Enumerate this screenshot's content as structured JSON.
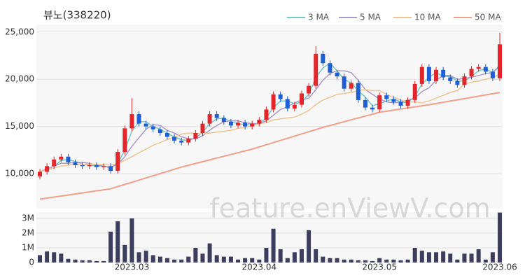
{
  "chart_data": {
    "type": "candlestick",
    "title": "뷰노(338220)",
    "watermark": "feature.enViewV.com",
    "categories": [
      null,
      null,
      null,
      null,
      null,
      null,
      null,
      null,
      null,
      null,
      null,
      null,
      null,
      "2023.03",
      null,
      null,
      null,
      null,
      null,
      null,
      null,
      null,
      null,
      null,
      null,
      null,
      null,
      null,
      null,
      null,
      null,
      "2023.04",
      null,
      null,
      null,
      null,
      null,
      null,
      null,
      null,
      null,
      null,
      null,
      null,
      null,
      null,
      null,
      null,
      "2023.05",
      null,
      null,
      null,
      null,
      null,
      null,
      null,
      null,
      null,
      null,
      null,
      null,
      null,
      null,
      null,
      null,
      "2023.06"
    ],
    "candles": {
      "open": [
        9700,
        10200,
        10800,
        11500,
        11800,
        11200,
        10900,
        10800,
        10900,
        10700,
        10800,
        10300,
        12300,
        14800,
        16300,
        15300,
        15000,
        14700,
        14300,
        13900,
        13500,
        13300,
        13700,
        14300,
        15300,
        16300,
        15900,
        15500,
        15100,
        15400,
        15000,
        15300,
        15700,
        16800,
        18400,
        17900,
        16900,
        17300,
        18500,
        19300,
        22700,
        21700,
        20700,
        20300,
        19000,
        19600,
        17800,
        17000,
        16800,
        18300,
        17900,
        17600,
        17200,
        17800,
        19500,
        21300,
        19800,
        21000,
        20200,
        19800,
        19400,
        20300,
        21100,
        21300,
        20800,
        20100
      ],
      "high": [
        10500,
        11100,
        11800,
        12100,
        12100,
        11500,
        11200,
        11200,
        11200,
        11100,
        11100,
        12600,
        15100,
        18000,
        16600,
        15600,
        15300,
        15000,
        14600,
        14200,
        13800,
        14000,
        14600,
        15600,
        16600,
        16600,
        16200,
        15800,
        15700,
        15700,
        15600,
        16000,
        17100,
        18700,
        18700,
        18200,
        17600,
        18800,
        19600,
        23500,
        23000,
        22000,
        21000,
        20600,
        19900,
        19900,
        18100,
        17300,
        18600,
        18600,
        18200,
        17900,
        18100,
        19800,
        21600,
        21600,
        21300,
        21300,
        20500,
        20100,
        20600,
        21400,
        21600,
        21600,
        21100,
        24900
      ],
      "low": [
        9400,
        9900,
        10500,
        11200,
        10900,
        10600,
        10500,
        10500,
        10400,
        10400,
        10000,
        10000,
        12000,
        14500,
        15000,
        14700,
        14400,
        14000,
        13600,
        13200,
        13000,
        13000,
        13400,
        14000,
        15000,
        15600,
        15200,
        14800,
        14800,
        14700,
        14700,
        15000,
        15400,
        16500,
        17600,
        16600,
        16600,
        17000,
        18200,
        19000,
        21400,
        20400,
        20000,
        18700,
        18700,
        17500,
        16700,
        16500,
        16500,
        17600,
        17300,
        16900,
        16900,
        17500,
        19200,
        19500,
        19500,
        19900,
        19500,
        19100,
        19100,
        20000,
        20800,
        20500,
        19800,
        19800
      ],
      "close": [
        10200,
        10800,
        11500,
        11800,
        11200,
        10900,
        10800,
        10900,
        10700,
        10800,
        10300,
        12300,
        14800,
        16300,
        15300,
        15000,
        14700,
        14300,
        13900,
        13500,
        13300,
        13700,
        14300,
        15300,
        16300,
        15900,
        15500,
        15100,
        15400,
        15000,
        15300,
        15700,
        16800,
        18400,
        17900,
        16900,
        17300,
        18500,
        19300,
        22700,
        21700,
        20700,
        20300,
        19000,
        19600,
        17800,
        17000,
        16800,
        18300,
        17900,
        17600,
        17200,
        17800,
        19500,
        21300,
        19800,
        21000,
        20200,
        19800,
        19400,
        20300,
        21100,
        21300,
        20800,
        20100,
        23700
      ]
    },
    "up_color": "#e3262b",
    "down_color": "#1e5fd8",
    "series": [
      {
        "name": "3 MA",
        "color": "#72cbc2",
        "values": [
          10200,
          10500,
          10800,
          11400,
          11500,
          11300,
          11000,
          10900,
          10800,
          10800,
          10600,
          11100,
          12500,
          14500,
          15500,
          15500,
          15000,
          14700,
          14300,
          13900,
          13600,
          13500,
          13800,
          14400,
          15300,
          15800,
          15900,
          15500,
          15300,
          15200,
          15200,
          15300,
          15900,
          17000,
          17700,
          17700,
          17400,
          17600,
          18400,
          20200,
          21200,
          21700,
          20900,
          20000,
          19600,
          18800,
          18100,
          17200,
          17400,
          17700,
          17900,
          17600,
          17500,
          18200,
          19500,
          20200,
          20700,
          20300,
          20300,
          19800,
          19800,
          20300,
          20900,
          21100,
          20700,
          21500
        ]
      },
      {
        "name": "5 MA",
        "color": "#ab9bca",
        "values": [
          10200,
          10500,
          10800,
          11100,
          11100,
          11200,
          11200,
          11100,
          10900,
          10800,
          10700,
          11000,
          11800,
          12900,
          13800,
          14700,
          15200,
          15100,
          14600,
          14300,
          13900,
          13700,
          13700,
          14000,
          14600,
          15100,
          15500,
          15600,
          15600,
          15400,
          15300,
          15300,
          15600,
          16200,
          16800,
          17100,
          17500,
          17800,
          18000,
          18900,
          19900,
          20600,
          20900,
          20900,
          20700,
          19900,
          18900,
          18400,
          17900,
          17600,
          17500,
          17600,
          17800,
          18000,
          18700,
          19100,
          19900,
          20400,
          20400,
          20000,
          20100,
          20200,
          20400,
          20600,
          20700,
          21400
        ]
      },
      {
        "name": "10 MA",
        "color": "#efc591",
        "values": [
          10200,
          10400,
          10600,
          10800,
          10900,
          11000,
          11000,
          11000,
          11000,
          11000,
          10900,
          11100,
          11400,
          11800,
          12200,
          12600,
          13000,
          13300,
          13600,
          13900,
          14200,
          14300,
          14300,
          14200,
          14300,
          14400,
          14500,
          14600,
          14800,
          14900,
          15100,
          15300,
          15400,
          15700,
          15800,
          15900,
          16000,
          16300,
          16700,
          17300,
          17800,
          18100,
          18400,
          18500,
          18600,
          18800,
          18900,
          18800,
          18800,
          18400,
          18100,
          17800,
          17600,
          17600,
          17500,
          17700,
          18000,
          18300,
          18600,
          18800,
          19500,
          19700,
          19800,
          20000,
          20200,
          20500
        ]
      },
      {
        "name": "50 MA",
        "color": "#f3a08b",
        "values": [
          7300,
          7410,
          7520,
          7630,
          7740,
          7850,
          7960,
          8070,
          8180,
          8290,
          8400,
          8630,
          8860,
          9090,
          9320,
          9550,
          9780,
          10010,
          10240,
          10470,
          10700,
          10890,
          11080,
          11270,
          11460,
          11650,
          11840,
          12030,
          12220,
          12410,
          12600,
          12830,
          13060,
          13290,
          13520,
          13750,
          13980,
          14210,
          14440,
          14670,
          14900,
          15100,
          15300,
          15500,
          15700,
          15900,
          16100,
          16300,
          16500,
          16610,
          16730,
          16840,
          16960,
          17070,
          17190,
          17300,
          17430,
          17560,
          17690,
          17820,
          17950,
          18080,
          18210,
          18340,
          18470,
          18600
        ]
      }
    ],
    "ylim": [
      6300,
      25800
    ],
    "yticks": [
      {
        "value": 10000,
        "label": "10,000"
      },
      {
        "value": 15000,
        "label": "15,000"
      },
      {
        "value": 20000,
        "label": "20,000"
      },
      {
        "value": 25000,
        "label": "25,000"
      }
    ],
    "grid": true,
    "volume": {
      "color": "#3d3d5e",
      "values": [
        500000,
        750000,
        700000,
        600000,
        250000,
        200000,
        150000,
        150000,
        100000,
        100000,
        2100000,
        2800000,
        1200000,
        3000000,
        700000,
        800000,
        500000,
        400000,
        300000,
        200000,
        200000,
        400000,
        1000000,
        600000,
        1300000,
        500000,
        400000,
        400000,
        200000,
        300000,
        300000,
        200000,
        1000000,
        2300000,
        900000,
        300000,
        700000,
        900000,
        2200000,
        900000,
        400000,
        300000,
        300000,
        200000,
        200000,
        150000,
        150000,
        100000,
        300000,
        200000,
        200000,
        150000,
        200000,
        1000000,
        800000,
        700000,
        700000,
        750000,
        600000,
        200000,
        600000,
        600000,
        900000,
        200000,
        700000,
        3400000
      ],
      "ylim": [
        0,
        3430000
      ],
      "yticks": [
        0,
        {
          "value": 1000000,
          "label": "1M"
        },
        {
          "value": 2000000,
          "label": "2M"
        },
        {
          "value": 3000000,
          "label": "3M"
        }
      ]
    }
  }
}
